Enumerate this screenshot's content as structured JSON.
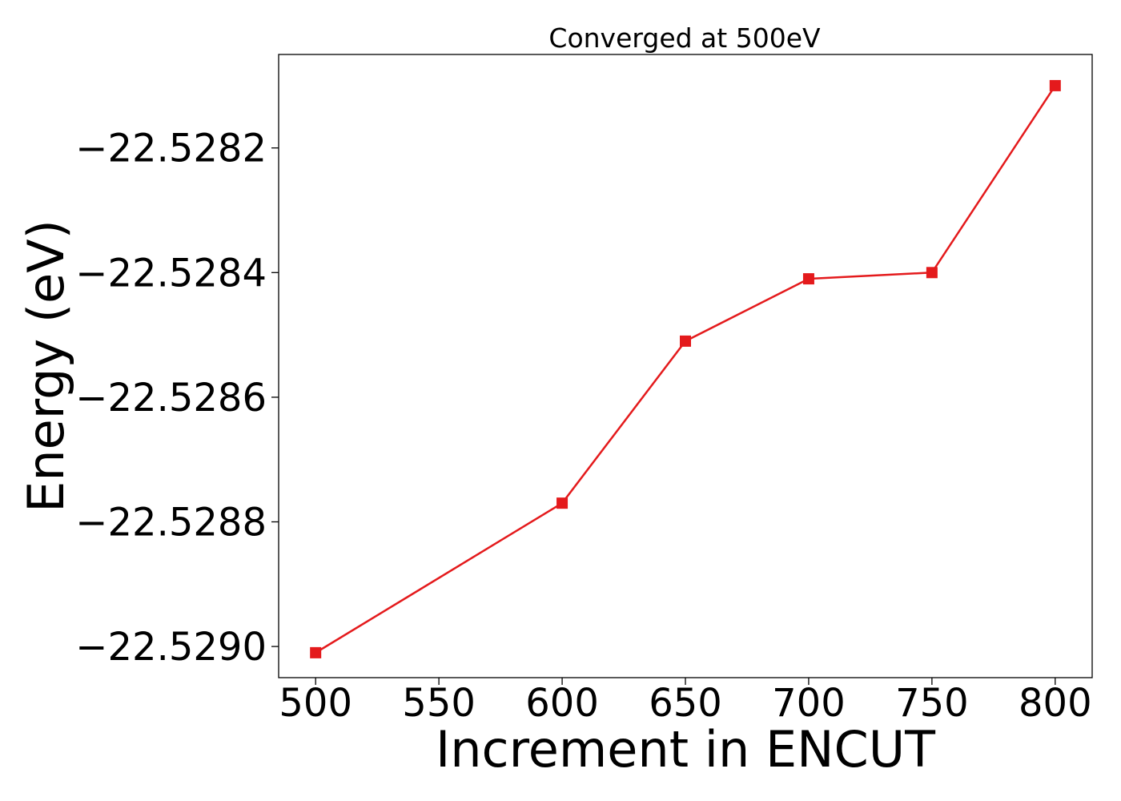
{
  "chart_data": {
    "type": "line",
    "title": "Converged at 500eV",
    "xlabel": "Increment in ENCUT",
    "ylabel": "Energy (eV)",
    "x": [
      500,
      600,
      650,
      700,
      750,
      800
    ],
    "series": [
      {
        "values": [
          -22.52901,
          -22.52877,
          -22.52851,
          -22.52841,
          -22.5284,
          -22.5281
        ],
        "color": "#e41a1c",
        "marker": "square"
      }
    ],
    "xlim": [
      485,
      815
    ],
    "ylim": [
      -22.52905,
      -22.52805
    ],
    "xticks": [
      500,
      550,
      600,
      650,
      700,
      750,
      800
    ],
    "xtick_labels": [
      "500",
      "550",
      "600",
      "650",
      "700",
      "750",
      "800"
    ],
    "yticks": [
      -22.5282,
      -22.5284,
      -22.5286,
      -22.5288,
      -22.529
    ],
    "ytick_labels": [
      "−22.5282",
      "−22.5284",
      "−22.5286",
      "−22.5288",
      "−22.5290"
    ],
    "grid": false,
    "legend": "none"
  }
}
